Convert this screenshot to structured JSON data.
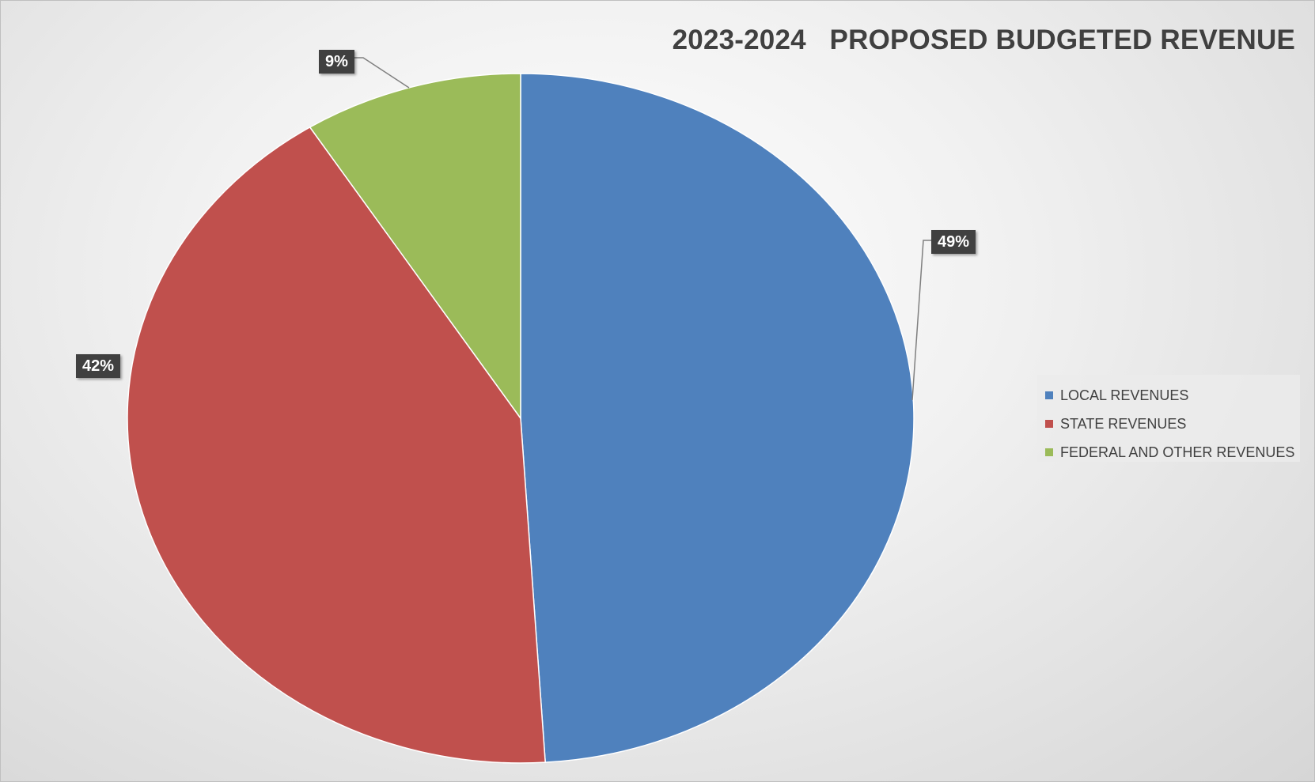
{
  "chart_data": {
    "type": "pie",
    "title": "2023-2024   PROPOSED BUDGETED REVENUE",
    "categories": [
      "LOCAL REVENUES",
      "STATE REVENUES",
      "FEDERAL AND OTHER REVENUES"
    ],
    "values": [
      49,
      42,
      9
    ],
    "value_labels": [
      "49%",
      "42%",
      "9%"
    ],
    "colors": [
      "#4F81BD",
      "#C0504D",
      "#9BBB59"
    ],
    "legend_position": "right",
    "start_angle_deg": 0,
    "direction": "clockwise"
  }
}
